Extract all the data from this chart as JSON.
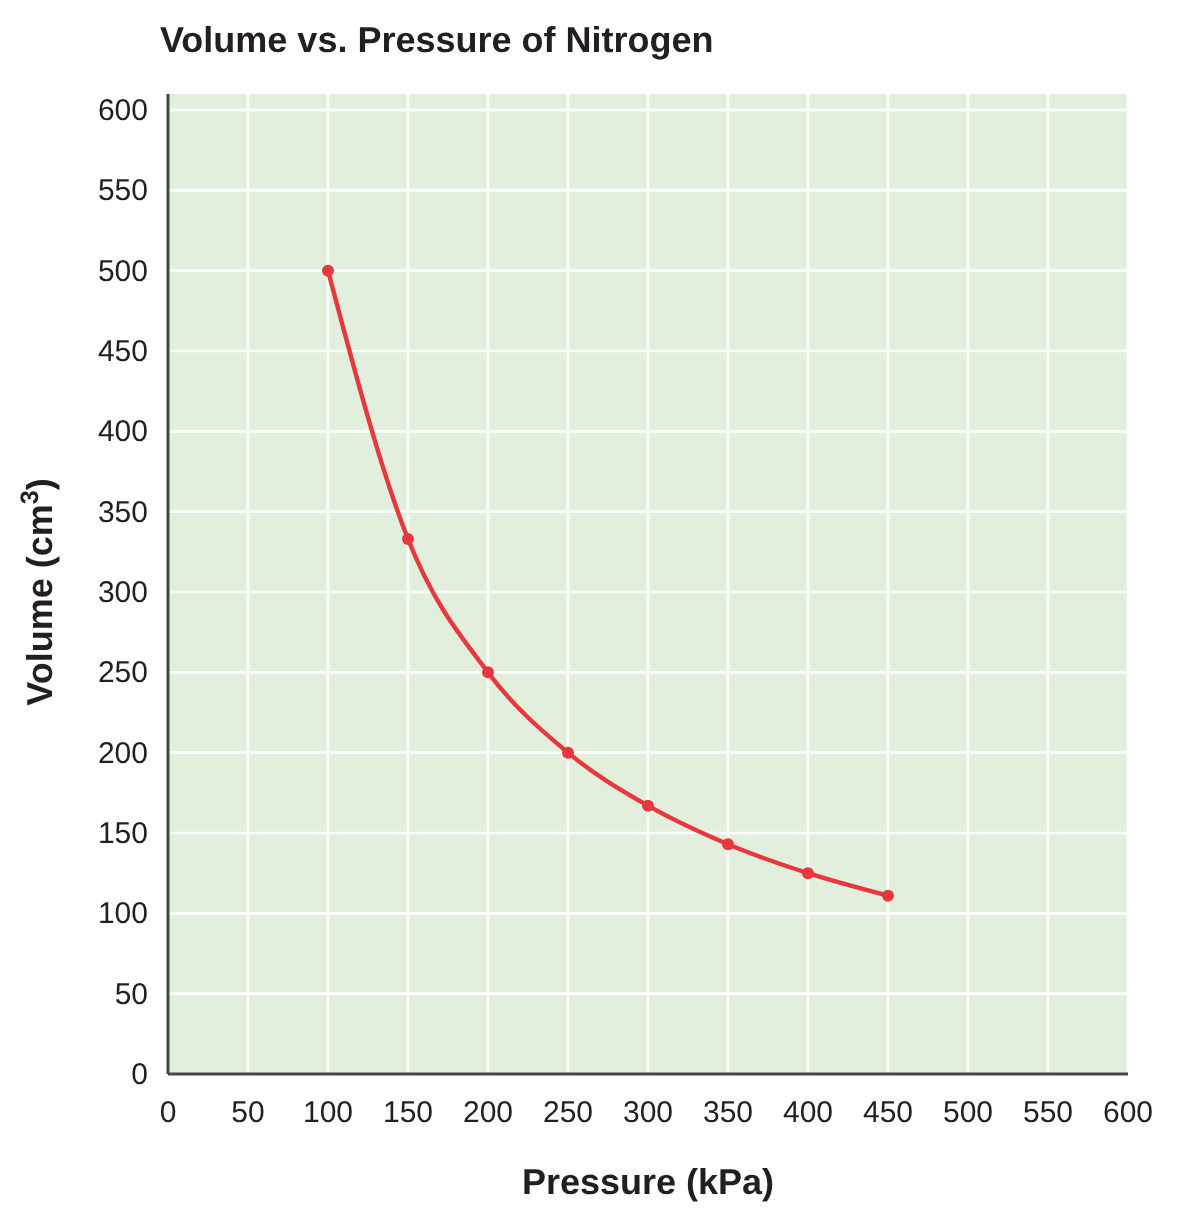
{
  "chart_data": {
    "type": "line",
    "title": "Volume vs. Pressure of Nitrogen",
    "xlabel": "Pressure (kPa)",
    "ylabel": "Volume (cm$^{3}$)",
    "x": [
      100,
      150,
      200,
      250,
      300,
      350,
      400,
      450
    ],
    "series": [
      {
        "color": "#e8383d",
        "values": [
          500,
          333,
          250,
          200,
          167,
          143,
          125,
          111
        ]
      }
    ],
    "xlim": [
      0,
      600
    ],
    "xticks": [
      0,
      50,
      100,
      150,
      200,
      250,
      300,
      350,
      400,
      450,
      500,
      550,
      600
    ],
    "ylim": [
      0,
      600
    ],
    "yticks": [
      0,
      50,
      100,
      150,
      200,
      250,
      300,
      350,
      400,
      450,
      500,
      550,
      600
    ],
    "grid": true,
    "marker": "circle",
    "line_style": "solid"
  }
}
